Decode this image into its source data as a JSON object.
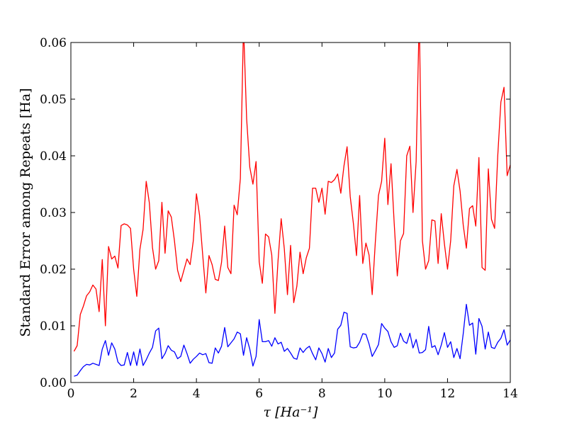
{
  "chart_data": {
    "type": "line",
    "title": "",
    "xlabel": "τ [Ha⁻¹]",
    "ylabel": "Standard Error among Repeats  [Ha]",
    "xlim": [
      0,
      14
    ],
    "ylim": [
      0,
      0.06
    ],
    "x_ticks": [
      "0",
      "2",
      "4",
      "6",
      "8",
      "10",
      "12",
      "14"
    ],
    "y_ticks": [
      "0.00",
      "0.01",
      "0.02",
      "0.03",
      "0.04",
      "0.05",
      "0.06"
    ],
    "grid": false,
    "legend": "none",
    "colors": {
      "red_series": "#ff0000",
      "blue_series": "#0000ff"
    },
    "x": [
      0.1,
      0.2,
      0.3,
      0.4,
      0.5,
      0.6,
      0.7,
      0.8,
      0.9,
      1.0,
      1.1,
      1.2,
      1.3,
      1.4,
      1.5,
      1.6,
      1.7,
      1.8,
      1.9,
      2.0,
      2.1,
      2.2,
      2.3,
      2.4,
      2.5,
      2.6,
      2.7,
      2.8,
      2.9,
      3.0,
      3.1,
      3.2,
      3.3,
      3.4,
      3.5,
      3.6,
      3.7,
      3.8,
      3.9,
      4.0,
      4.1,
      4.2,
      4.3,
      4.4,
      4.5,
      4.6,
      4.7,
      4.8,
      4.9,
      5.0,
      5.1,
      5.2,
      5.3,
      5.4,
      5.5,
      5.6,
      5.7,
      5.8,
      5.9,
      6.0,
      6.1,
      6.2,
      6.3,
      6.4,
      6.5,
      6.6,
      6.7,
      6.8,
      6.9,
      7.0,
      7.1,
      7.2,
      7.3,
      7.4,
      7.5,
      7.6,
      7.7,
      7.8,
      7.9,
      8.0,
      8.1,
      8.2,
      8.3,
      8.4,
      8.5,
      8.6,
      8.7,
      8.8,
      8.9,
      9.0,
      9.1,
      9.2,
      9.3,
      9.4,
      9.5,
      9.6,
      9.7,
      9.8,
      9.9,
      10.0,
      10.1,
      10.2,
      10.3,
      10.4,
      10.5,
      10.6,
      10.7,
      10.8,
      10.9,
      11.0,
      11.1,
      11.2,
      11.3,
      11.4,
      11.5,
      11.6,
      11.7,
      11.8,
      11.9,
      12.0,
      12.1,
      12.2,
      12.3,
      12.4,
      12.5,
      12.6,
      12.7,
      12.8,
      12.9,
      13.0,
      13.1,
      13.2,
      13.3,
      13.4,
      13.5,
      13.6,
      13.7,
      13.8,
      13.9,
      14.0
    ],
    "series": [
      {
        "values": [
          0.0055,
          0.0065,
          0.012,
          0.0135,
          0.0153,
          0.016,
          0.0172,
          0.0165,
          0.0125,
          0.0217,
          0.01,
          0.024,
          0.0218,
          0.0223,
          0.0202,
          0.0277,
          0.028,
          0.0278,
          0.0272,
          0.02,
          0.0152,
          0.0235,
          0.027,
          0.0355,
          0.0317,
          0.0238,
          0.02,
          0.0215,
          0.0318,
          0.0228,
          0.0303,
          0.0292,
          0.025,
          0.0198,
          0.0178,
          0.0198,
          0.0218,
          0.0208,
          0.025,
          0.0333,
          0.0295,
          0.0225,
          0.0158,
          0.0224,
          0.0208,
          0.0182,
          0.018,
          0.0212,
          0.0276,
          0.0203,
          0.0192,
          0.0313,
          0.0296,
          0.036,
          0.063,
          0.0465,
          0.038,
          0.035,
          0.039,
          0.0213,
          0.0175,
          0.0262,
          0.0257,
          0.0225,
          0.0122,
          0.0215,
          0.0289,
          0.0236,
          0.0155,
          0.0242,
          0.0141,
          0.017,
          0.023,
          0.0192,
          0.022,
          0.0237,
          0.0343,
          0.0343,
          0.0318,
          0.0343,
          0.0297,
          0.0355,
          0.0353,
          0.0358,
          0.0368,
          0.0334,
          0.0382,
          0.0416,
          0.0328,
          0.0281,
          0.0224,
          0.033,
          0.021,
          0.0246,
          0.0225,
          0.0155,
          0.0248,
          0.033,
          0.0355,
          0.0431,
          0.0314,
          0.0386,
          0.0282,
          0.0188,
          0.025,
          0.0263,
          0.04,
          0.0417,
          0.03,
          0.039,
          0.065,
          0.025,
          0.02,
          0.0215,
          0.0287,
          0.0285,
          0.021,
          0.0298,
          0.0245,
          0.02,
          0.025,
          0.0347,
          0.0376,
          0.0338,
          0.0278,
          0.0237,
          0.0307,
          0.0312,
          0.0276,
          0.0397,
          0.0203,
          0.0198,
          0.0377,
          0.0288,
          0.0272,
          0.04,
          0.0495,
          0.0521,
          0.0365,
          0.0384
        ]
      },
      {
        "values": [
          0.0011,
          0.0013,
          0.0021,
          0.0028,
          0.0032,
          0.0031,
          0.0034,
          0.0032,
          0.003,
          0.0059,
          0.0074,
          0.0048,
          0.007,
          0.0059,
          0.0036,
          0.003,
          0.0031,
          0.0053,
          0.003,
          0.0054,
          0.003,
          0.0059,
          0.003,
          0.004,
          0.0052,
          0.0062,
          0.0091,
          0.0096,
          0.0042,
          0.0051,
          0.0065,
          0.0057,
          0.0054,
          0.0042,
          0.0046,
          0.0066,
          0.0051,
          0.0034,
          0.0041,
          0.0046,
          0.0052,
          0.0049,
          0.0051,
          0.0035,
          0.0034,
          0.0061,
          0.0052,
          0.0064,
          0.0097,
          0.0063,
          0.007,
          0.0077,
          0.0089,
          0.0086,
          0.0048,
          0.0079,
          0.0059,
          0.0029,
          0.0046,
          0.0111,
          0.0072,
          0.0072,
          0.0074,
          0.0064,
          0.0079,
          0.0068,
          0.0071,
          0.0055,
          0.006,
          0.0052,
          0.0043,
          0.0041,
          0.0061,
          0.0053,
          0.006,
          0.0064,
          0.0051,
          0.004,
          0.0061,
          0.0051,
          0.0036,
          0.006,
          0.0044,
          0.0052,
          0.0094,
          0.0101,
          0.0124,
          0.0122,
          0.0063,
          0.0061,
          0.0062,
          0.0071,
          0.0086,
          0.0085,
          0.0068,
          0.0046,
          0.0056,
          0.0067,
          0.0104,
          0.0096,
          0.009,
          0.0072,
          0.0062,
          0.0065,
          0.0087,
          0.0073,
          0.0069,
          0.0087,
          0.0061,
          0.0076,
          0.0052,
          0.0053,
          0.0058,
          0.0099,
          0.0062,
          0.0065,
          0.0049,
          0.0066,
          0.0088,
          0.0062,
          0.0072,
          0.0044,
          0.006,
          0.0042,
          0.0086,
          0.0138,
          0.0101,
          0.0105,
          0.005,
          0.0113,
          0.0099,
          0.0059,
          0.0089,
          0.0062,
          0.006,
          0.0071,
          0.0078,
          0.0093,
          0.0066,
          0.0075
        ]
      }
    ]
  }
}
